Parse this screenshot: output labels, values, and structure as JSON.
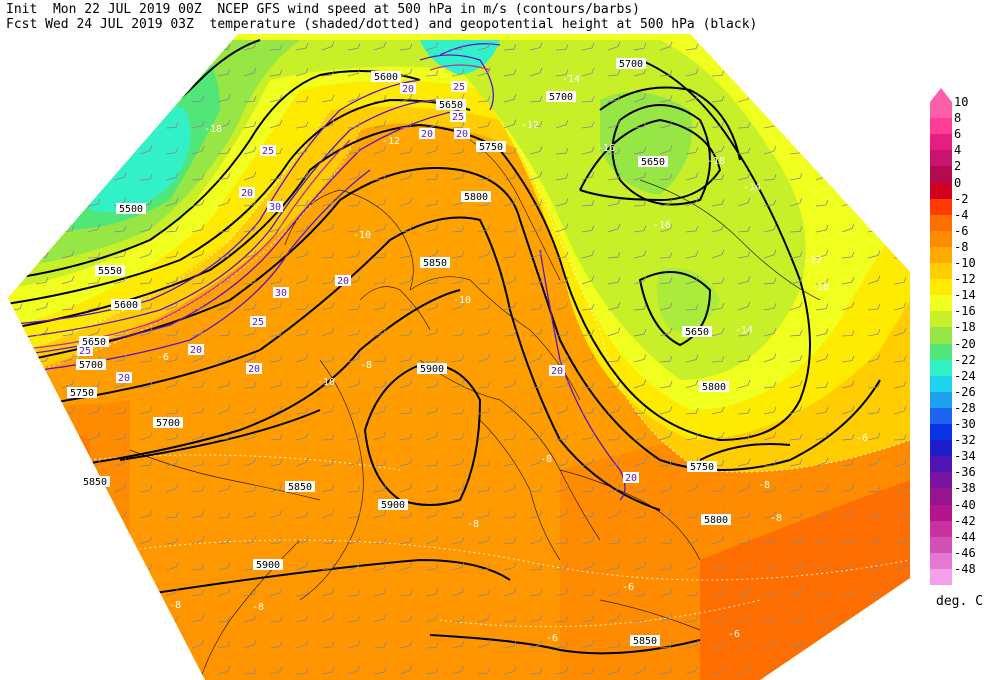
{
  "header": {
    "line1": "Init  Mon 22 JUL 2019 00Z  NCEP GFS wind speed at 500 hPa in m/s (contours/barbs)",
    "line2": "Fcst Wed 24 JUL 2019 03Z  temperature (shaded/dotted) and geopotential height at 500 hPa (black)"
  },
  "colorbar": {
    "unit": "deg. C",
    "levels": [
      "10",
      "8",
      "6",
      "4",
      "2",
      "0",
      "-2",
      "-4",
      "-6",
      "-8",
      "-10",
      "-12",
      "-14",
      "-16",
      "-18",
      "-20",
      "-22",
      "-24",
      "-26",
      "-28",
      "-30",
      "-32",
      "-34",
      "-36",
      "-38",
      "-40",
      "-42",
      "-44",
      "-46",
      "-48"
    ],
    "colors": [
      "#ff5fa8",
      "#ff3c96",
      "#e61e82",
      "#c8146e",
      "#b40a50",
      "#d2001e",
      "#ff3c00",
      "#ff6e00",
      "#ff8c00",
      "#ffaa00",
      "#ffcd00",
      "#ffeb00",
      "#f0ff1e",
      "#c8f028",
      "#96e646",
      "#50e678",
      "#32f0c8",
      "#1ed2f0",
      "#1ea0f0",
      "#1e64f0",
      "#0a32e6",
      "#1e1ec8",
      "#5014b4",
      "#7814a0",
      "#96148c",
      "#b4148c",
      "#c832a0",
      "#d250b4",
      "#e678d2",
      "#f5a0eb"
    ]
  },
  "height_labels": [
    "5700",
    "5600",
    "5650",
    "5700",
    "5750",
    "5650",
    "5500",
    "5800",
    "5550",
    "5850",
    "5600",
    "5650",
    "5650",
    "5700",
    "5750",
    "5800",
    "5900",
    "5700",
    "5750",
    "5800",
    "5850",
    "5900",
    "5900",
    "5850",
    "5850"
  ],
  "temp_labels": [
    "-18",
    "-16",
    "-12",
    "-14",
    "-14",
    "-12",
    "-10",
    "-10",
    "-8",
    "-6",
    "-8",
    "-8",
    "-6",
    "-8",
    "-6",
    "-6",
    "-8",
    "-8",
    "-6",
    "-6",
    "-6",
    "-18",
    "-16",
    "-14",
    "-12",
    "-10",
    "-10",
    "-8"
  ],
  "wind_labels": [
    "20",
    "25",
    "25",
    "20",
    "20",
    "25",
    "20",
    "30",
    "25",
    "30",
    "20",
    "20",
    "20",
    "20",
    "25",
    "20",
    "20"
  ]
}
